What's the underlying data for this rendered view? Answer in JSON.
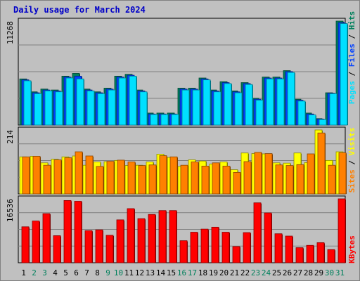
{
  "title": "Daily usage for March 2024",
  "colors": {
    "background": "#c0c0c0",
    "panel": "#c0c0c0",
    "grid": "#808080",
    "title": "#0000c8",
    "weekday": "#000000",
    "weekend": "#00805c",
    "hits": "#00805c",
    "files": "#0040ff",
    "pages": "#00e0ff",
    "visits": "#ffff00",
    "sites": "#ff8000",
    "kbytes": "#ff0000"
  },
  "side_labels": {
    "hits": "Hits",
    "files": "Files",
    "pages": "Pages",
    "visits": "Visits",
    "sites": "Sites",
    "kbytes": "KBytes",
    "sep": " / "
  },
  "chart_data": [
    {
      "type": "bar",
      "panel": "hits-files-pages",
      "ylabel_max": "11268",
      "ylim": [
        0,
        11268
      ],
      "grid": true,
      "categories": [
        "1",
        "2",
        "3",
        "4",
        "5",
        "6",
        "7",
        "8",
        "9",
        "10",
        "11",
        "12",
        "13",
        "14",
        "15",
        "16",
        "17",
        "18",
        "19",
        "20",
        "21",
        "22",
        "23",
        "24",
        "25",
        "26",
        "27",
        "28",
        "29",
        "30",
        "31"
      ],
      "weekend_days": [
        "2",
        "3",
        "9",
        "10",
        "16",
        "17",
        "23",
        "24",
        "30",
        "31"
      ],
      "series": [
        {
          "name": "Hits",
          "color": "#00805c",
          "values": [
            5000,
            3600,
            3900,
            3800,
            5300,
            5600,
            3900,
            3600,
            4000,
            5300,
            5500,
            3800,
            1300,
            1300,
            1300,
            4000,
            4000,
            5100,
            3800,
            4700,
            3700,
            4600,
            2900,
            5200,
            5200,
            5900,
            2800,
            1300,
            700,
            3500,
            11268
          ]
        },
        {
          "name": "Files",
          "color": "#0040ff",
          "values": [
            4900,
            3500,
            3800,
            3700,
            5200,
            5300,
            3800,
            3500,
            3900,
            5200,
            5400,
            3700,
            1200,
            1200,
            1200,
            3900,
            3900,
            5000,
            3700,
            4600,
            3600,
            4500,
            2800,
            5100,
            5100,
            5800,
            2700,
            1200,
            650,
            3450,
            11100
          ]
        },
        {
          "name": "Pages",
          "color": "#00e0ff",
          "values": [
            4800,
            3400,
            3700,
            3600,
            5100,
            5000,
            3700,
            3400,
            3800,
            5100,
            5300,
            3600,
            1150,
            1150,
            1150,
            3800,
            3800,
            4900,
            3600,
            4500,
            3500,
            4400,
            2700,
            5000,
            5000,
            5700,
            2600,
            1100,
            600,
            3400,
            11000
          ]
        }
      ]
    },
    {
      "type": "bar",
      "panel": "visits-sites",
      "ylabel_max": "214",
      "ylim": [
        0,
        214
      ],
      "grid": true,
      "categories": [
        "1",
        "2",
        "3",
        "4",
        "5",
        "6",
        "7",
        "8",
        "9",
        "10",
        "11",
        "12",
        "13",
        "14",
        "15",
        "16",
        "17",
        "18",
        "19",
        "20",
        "21",
        "22",
        "23",
        "24",
        "25",
        "26",
        "27",
        "28",
        "29",
        "30",
        "31"
      ],
      "weekend_days": [
        "2",
        "3",
        "9",
        "10",
        "16",
        "17",
        "23",
        "24",
        "30",
        "31"
      ],
      "series": [
        {
          "name": "Visits",
          "color": "#ffff00",
          "values": [
            124,
            126,
            104,
            116,
            124,
            127,
            96,
            107,
            108,
            112,
            95,
            96,
            107,
            133,
            122,
            92,
            114,
            110,
            100,
            107,
            81,
            137,
            135,
            134,
            104,
            103,
            137,
            105,
            214,
            112,
            141
          ]
        },
        {
          "name": "Sites",
          "color": "#ff8000",
          "values": [
            124,
            126,
            96,
            114,
            121,
            141,
            127,
            92,
            109,
            113,
            107,
            95,
            97,
            128,
            124,
            96,
            107,
            93,
            104,
            93,
            72,
            108,
            139,
            135,
            97,
            95,
            98,
            134,
            204,
            96,
            138
          ]
        }
      ]
    },
    {
      "type": "bar",
      "panel": "kbytes",
      "ylabel_max": "16536",
      "ylim": [
        0,
        16536
      ],
      "grid": true,
      "categories": [
        "1",
        "2",
        "3",
        "4",
        "5",
        "6",
        "7",
        "8",
        "9",
        "10",
        "11",
        "12",
        "13",
        "14",
        "15",
        "16",
        "17",
        "18",
        "19",
        "20",
        "21",
        "22",
        "23",
        "24",
        "25",
        "26",
        "27",
        "28",
        "29",
        "30",
        "31"
      ],
      "weekend_days": [
        "2",
        "3",
        "9",
        "10",
        "16",
        "17",
        "23",
        "24",
        "30",
        "31"
      ],
      "series": [
        {
          "name": "KBytes",
          "color": "#ff0000",
          "values": [
            9300,
            10800,
            12700,
            7000,
            16100,
            15900,
            8300,
            8500,
            7100,
            11100,
            14000,
            11400,
            12500,
            13500,
            13500,
            5700,
            7900,
            8700,
            9200,
            7900,
            4200,
            7800,
            15500,
            12900,
            7500,
            6900,
            3900,
            4500,
            5200,
            3400,
            16536
          ]
        }
      ]
    }
  ]
}
